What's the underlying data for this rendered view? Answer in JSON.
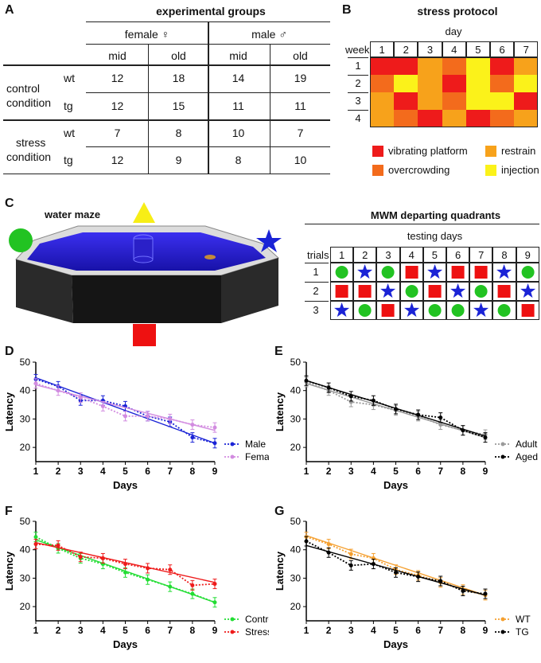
{
  "panels": {
    "A": "A",
    "B": "B",
    "C": "C",
    "D": "D",
    "E": "E",
    "F": "F",
    "G": "G"
  },
  "groups_table": {
    "title": "experimental groups",
    "sex_headers": [
      "female ♀",
      "male ♂"
    ],
    "age_headers": [
      "mid",
      "old",
      "mid",
      "old"
    ],
    "conditions": [
      {
        "line1": "control",
        "line2": "condition",
        "rows": [
          {
            "genotype": "wt",
            "values": [
              "12",
              "18",
              "14",
              "19"
            ]
          },
          {
            "genotype": "tg",
            "values": [
              "12",
              "15",
              "11",
              "11"
            ]
          }
        ]
      },
      {
        "line1": "stress",
        "line2": "condition",
        "rows": [
          {
            "genotype": "wt",
            "values": [
              "7",
              "8",
              "10",
              "7"
            ]
          },
          {
            "genotype": "tg",
            "values": [
              "12",
              "9",
              "8",
              "10"
            ]
          }
        ]
      }
    ]
  },
  "stress_protocol": {
    "title": "stress protocol",
    "day_label": "day",
    "week_label": "week",
    "days": [
      "1",
      "2",
      "3",
      "4",
      "5",
      "6",
      "7"
    ],
    "weeks": [
      "1",
      "2",
      "3",
      "4"
    ],
    "grid": [
      [
        "vibrating",
        "vibrating",
        "restrain",
        "overcrowding",
        "injection",
        "vibrating",
        "restrain"
      ],
      [
        "overcrowding",
        "injection",
        "restrain",
        "vibrating",
        "injection",
        "overcrowding",
        "injection"
      ],
      [
        "restrain",
        "vibrating",
        "restrain",
        "overcrowding",
        "injection",
        "injection",
        "vibrating"
      ],
      [
        "restrain",
        "overcrowding",
        "vibrating",
        "restrain",
        "vibrating",
        "overcrowding",
        "restrain"
      ]
    ],
    "colors": {
      "vibrating": "#ee1b1b",
      "overcrowding": "#f36b1c",
      "restrain": "#f7a21b",
      "injection": "#fbf21a"
    },
    "legend": [
      {
        "key": "vibrating",
        "label": "vibrating platform"
      },
      {
        "key": "restrain",
        "label": "restrain"
      },
      {
        "key": "overcrowding",
        "label": "overcrowding"
      },
      {
        "key": "injection",
        "label": "injection"
      }
    ]
  },
  "water_maze": {
    "title": "water maze",
    "cue_icons": [
      "green-circle-cue",
      "yellow-triangle-cue",
      "blue-star-cue",
      "red-square-cue"
    ]
  },
  "mwm_quadrants": {
    "title": "MWM departing quadrants",
    "days_label": "testing days",
    "trials_label": "trials",
    "days": [
      "1",
      "2",
      "3",
      "4",
      "5",
      "6",
      "7",
      "8",
      "9"
    ],
    "trials": [
      "1",
      "2",
      "3"
    ],
    "grid": [
      [
        "circle",
        "star",
        "circle",
        "square",
        "star",
        "square",
        "square",
        "star",
        "circle"
      ],
      [
        "square",
        "square",
        "star",
        "circle",
        "square",
        "star",
        "circle",
        "square",
        "star"
      ],
      [
        "star",
        "circle",
        "square",
        "star",
        "circle",
        "circle",
        "star",
        "circle",
        "square"
      ]
    ],
    "colors": {
      "circle": "#22c322",
      "star": "#1a23d6",
      "square": "#ee1111"
    }
  },
  "chart_data": [
    {
      "panel": "D",
      "type": "line",
      "title": "",
      "xlabel": "Days",
      "ylabel": "Latency",
      "x": [
        1,
        2,
        3,
        4,
        5,
        6,
        7,
        8,
        9
      ],
      "xlim": [
        1,
        9
      ],
      "ylim": [
        15,
        50
      ],
      "yticks": [
        20,
        30,
        40,
        50
      ],
      "legend_position": "bottom-right",
      "series": [
        {
          "name": "Male",
          "color": "#1a23d6",
          "values": [
            44,
            41.5,
            36.5,
            36.5,
            34.5,
            31,
            29,
            23.5,
            21.5
          ],
          "trend": [
            44.5,
            21.5
          ]
        },
        {
          "name": "Female",
          "color": "#d28be0",
          "values": [
            42.5,
            40,
            37.5,
            34.5,
            31,
            31,
            30,
            28,
            27
          ],
          "trend": [
            42,
            26
          ]
        }
      ]
    },
    {
      "panel": "E",
      "type": "line",
      "title": "",
      "xlabel": "Days",
      "ylabel": "Latency",
      "x": [
        1,
        2,
        3,
        4,
        5,
        6,
        7,
        8,
        9
      ],
      "xlim": [
        1,
        9
      ],
      "ylim": [
        15,
        50
      ],
      "yticks": [
        20,
        30,
        40,
        50
      ],
      "legend_position": "bottom-right",
      "series": [
        {
          "name": "Adult",
          "color": "#9a9a9a",
          "values": [
            43,
            40,
            36,
            35,
            33,
            31,
            28,
            26,
            24.5
          ],
          "trend": [
            42.5,
            23.5
          ]
        },
        {
          "name": "Aged",
          "color": "#000000",
          "values": [
            43.5,
            41,
            38,
            36.5,
            33.5,
            31.5,
            30.5,
            26,
            23.5
          ],
          "trend": [
            43.5,
            24
          ]
        }
      ]
    },
    {
      "panel": "F",
      "type": "line",
      "title": "",
      "xlabel": "Days",
      "ylabel": "Latency",
      "x": [
        1,
        2,
        3,
        4,
        5,
        6,
        7,
        8,
        9
      ],
      "xlim": [
        1,
        9
      ],
      "ylim": [
        15,
        50
      ],
      "yticks": [
        20,
        30,
        40,
        50
      ],
      "legend_position": "bottom-right",
      "series": [
        {
          "name": "Control",
          "color": "#22dd33",
          "values": [
            44.5,
            40.5,
            37,
            35,
            32,
            29.5,
            27,
            24.5,
            21.5
          ],
          "trend": [
            43.5,
            21.5
          ]
        },
        {
          "name": "Stress",
          "color": "#ee1b1b",
          "values": [
            42,
            41.5,
            37.5,
            37,
            35,
            33.5,
            33,
            27.5,
            28
          ],
          "trend": [
            42.5,
            28.5
          ]
        }
      ]
    },
    {
      "panel": "G",
      "type": "line",
      "title": "",
      "xlabel": "Days",
      "ylabel": "Latency",
      "x": [
        1,
        2,
        3,
        4,
        5,
        6,
        7,
        8,
        9
      ],
      "xlim": [
        1,
        9
      ],
      "ylim": [
        15,
        50
      ],
      "yticks": [
        20,
        30,
        40,
        50
      ],
      "legend_position": "bottom-right",
      "series": [
        {
          "name": "WT",
          "color": "#f5a030",
          "values": [
            44.5,
            42,
            38.5,
            37,
            33,
            31,
            28.5,
            26,
            24
          ],
          "trend": [
            45,
            24
          ]
        },
        {
          "name": "TG",
          "color": "#000000",
          "values": [
            43,
            39,
            34.5,
            35,
            32,
            30.5,
            29,
            25.5,
            24.5
          ],
          "trend": [
            41.5,
            24
          ]
        }
      ]
    }
  ]
}
